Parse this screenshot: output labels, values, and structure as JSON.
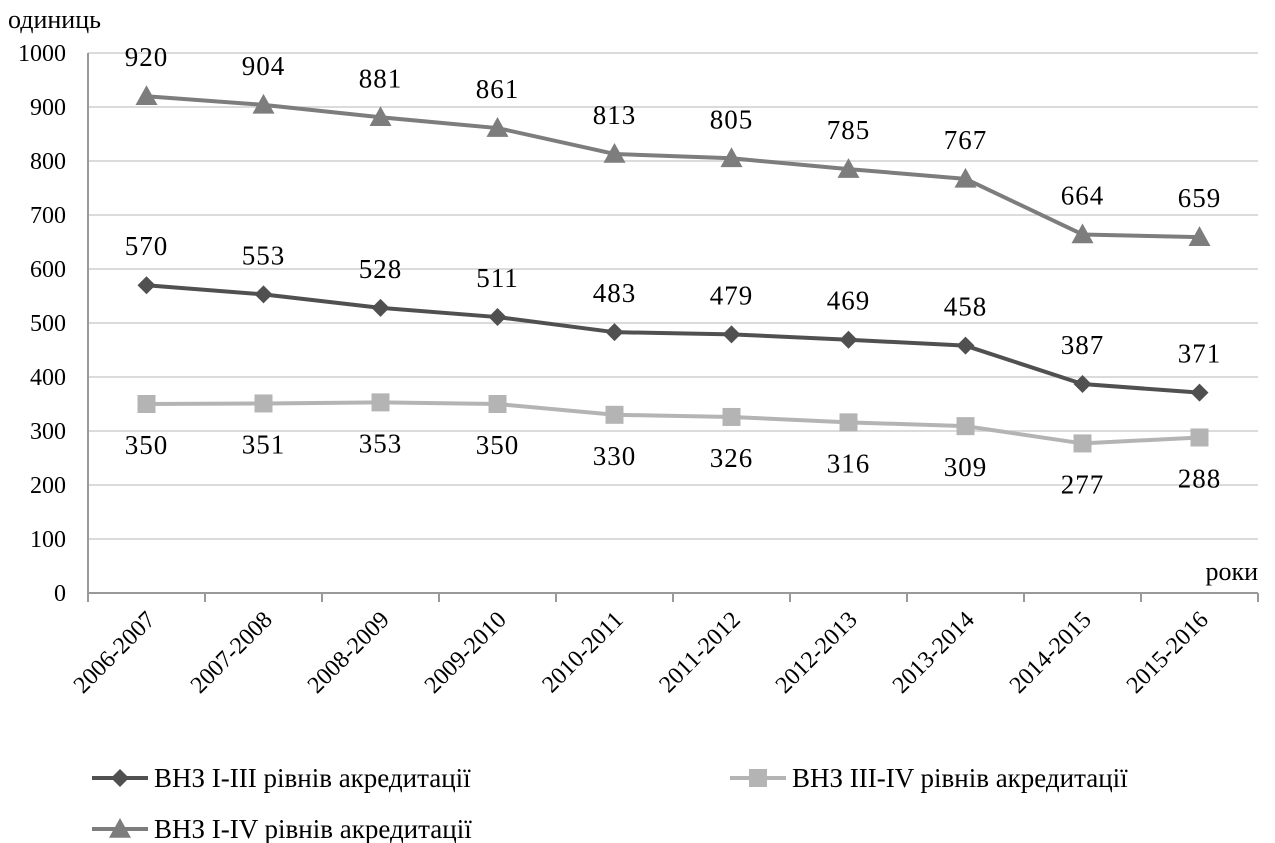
{
  "chart_data": {
    "type": "line",
    "title": "",
    "ylabel": "одиниць",
    "xlabel": "роки",
    "ylim": [
      0,
      1000
    ],
    "yticks": [
      0,
      100,
      200,
      300,
      400,
      500,
      600,
      700,
      800,
      900,
      1000
    ],
    "grid": true,
    "legend_position": "bottom",
    "categories": [
      "2006-2007",
      "2007-2008",
      "2008-2009",
      "2009-2010",
      "2010-2011",
      "2011-2012",
      "2012-2013",
      "2013-2014",
      "2014-2015",
      "2015-2016"
    ],
    "series": [
      {
        "name": "ВНЗ I-III рівнів акредитації",
        "color": "#505050",
        "marker": "diamond",
        "label_position": "above",
        "values": [
          570,
          553,
          528,
          511,
          483,
          479,
          469,
          458,
          387,
          371
        ]
      },
      {
        "name": "ВНЗ III-IV рівнів акредитації",
        "color": "#b4b4b4",
        "marker": "square",
        "label_position": "below",
        "values": [
          350,
          351,
          353,
          350,
          330,
          326,
          316,
          309,
          277,
          288
        ]
      },
      {
        "name": "ВНЗ I-IV рівнів акредитації",
        "color": "#7d7d7d",
        "marker": "triangle",
        "label_position": "above",
        "values": [
          920,
          904,
          881,
          861,
          813,
          805,
          785,
          767,
          664,
          659
        ]
      }
    ]
  }
}
